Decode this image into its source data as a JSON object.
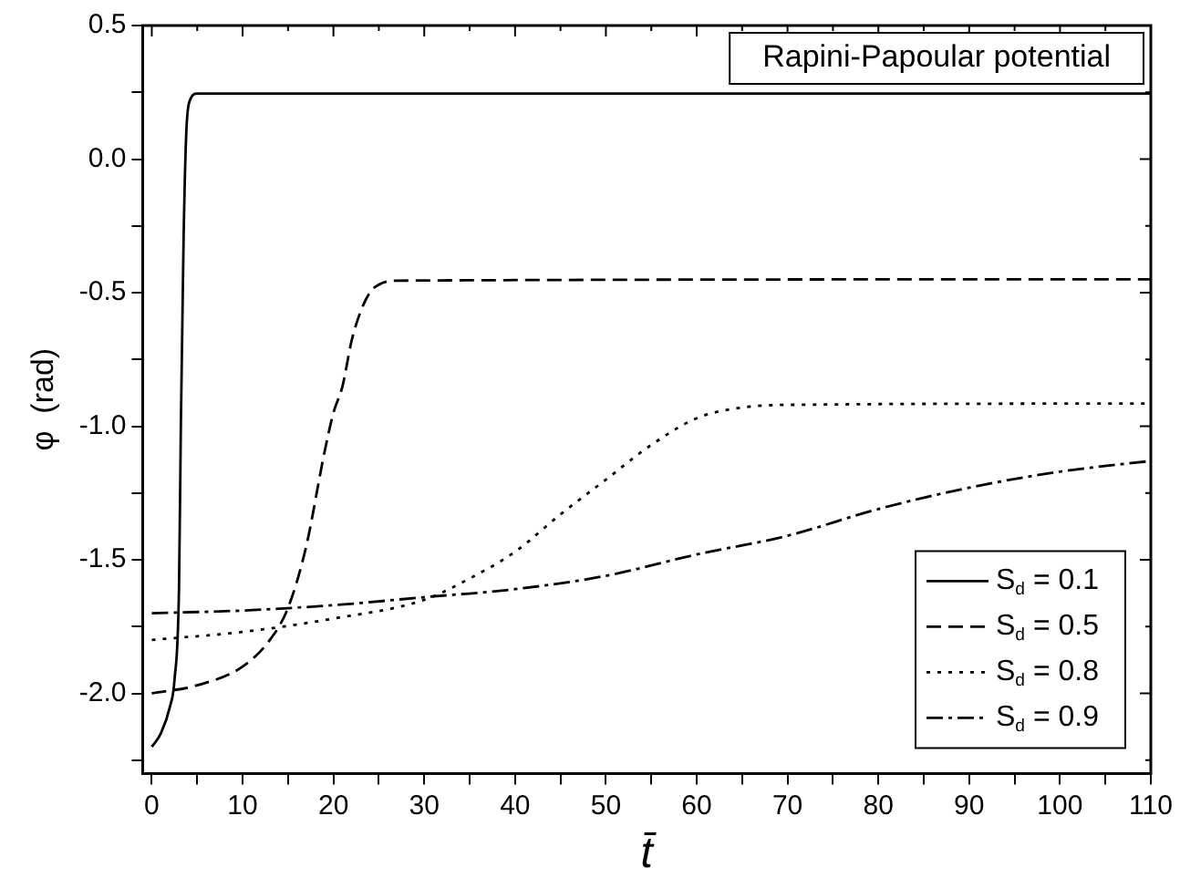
{
  "chart_data": {
    "type": "line",
    "title": "Rapini-Papoular potential",
    "xlabel": "t̄",
    "ylabel": "φ  (rad)",
    "xlim": [
      -1,
      110
    ],
    "ylim": [
      -2.3,
      0.5
    ],
    "xticks": [
      0,
      {
        "value": 5,
        "label": null
      },
      10,
      {
        "value": 15,
        "label": null
      },
      20,
      {
        "value": 25,
        "label": null
      },
      30,
      {
        "value": 35,
        "label": null
      },
      40,
      {
        "value": 45,
        "label": null
      },
      50,
      {
        "value": 55,
        "label": null
      },
      60,
      {
        "value": 65,
        "label": null
      },
      70,
      {
        "value": 75,
        "label": null
      },
      80,
      {
        "value": 85,
        "label": null
      },
      90,
      {
        "value": 95,
        "label": null
      },
      100,
      {
        "value": 105,
        "label": null
      },
      110
    ],
    "yticks": [
      {
        "value": -2.25,
        "label": null
      },
      "-2.0",
      {
        "value": -1.75,
        "label": null
      },
      {
        "value": -1.5,
        "label": "-1.5"
      },
      {
        "value": -1.25,
        "label": null
      },
      {
        "value": -1.0,
        "label": "-1.0"
      },
      {
        "value": -0.75,
        "label": null
      },
      {
        "value": -0.5,
        "label": "-0.5"
      },
      {
        "value": -0.25,
        "label": null
      },
      {
        "value": 0.0,
        "label": "0.0"
      },
      {
        "value": 0.25,
        "label": null
      },
      {
        "value": 0.5,
        "label": "0.5"
      }
    ],
    "legend": "bottom right",
    "marker": "none",
    "grid": false,
    "series": [
      {
        "name": "S$_{d}$ = 0.1",
        "color": "#000000",
        "line_style": "solid",
        "x": [
          0,
          1,
          2,
          2.5,
          3,
          3.2,
          3.5,
          3.8,
          4.2,
          5,
          10,
          110
        ],
        "values": [
          -2.2,
          -2.15,
          -2.05,
          -1.95,
          -1.6,
          -1.0,
          -0.3,
          0.1,
          0.22,
          0.245,
          0.245,
          0.245
        ]
      },
      {
        "name": "S$_{d}$ = 0.5",
        "color": "#000000",
        "line_style": "dashed",
        "x": [
          0,
          5,
          10,
          13,
          15,
          17,
          19,
          20,
          21,
          22,
          23,
          24,
          25,
          27,
          110
        ],
        "values": [
          -2.0,
          -1.97,
          -1.9,
          -1.8,
          -1.68,
          -1.45,
          -1.1,
          -0.95,
          -0.85,
          -0.68,
          -0.57,
          -0.5,
          -0.47,
          -0.455,
          -0.45
        ]
      },
      {
        "name": "S$_{d}$ = 0.8",
        "color": "#000000",
        "line_style": "dotted",
        "x": [
          0,
          10,
          20,
          30,
          35,
          40,
          45,
          50,
          55,
          60,
          65,
          70,
          110
        ],
        "values": [
          -1.8,
          -1.77,
          -1.72,
          -1.65,
          -1.57,
          -1.47,
          -1.33,
          -1.2,
          -1.07,
          -0.97,
          -0.93,
          -0.92,
          -0.915
        ]
      },
      {
        "name": "S$_{d}$ = 0.9",
        "color": "#000000",
        "line_style": "dashdot",
        "x": [
          0,
          10,
          20,
          30,
          40,
          50,
          60,
          70,
          80,
          90,
          100,
          110
        ],
        "values": [
          -1.7,
          -1.69,
          -1.67,
          -1.64,
          -1.61,
          -1.56,
          -1.48,
          -1.41,
          -1.31,
          -1.23,
          -1.17,
          -1.13
        ]
      }
    ]
  }
}
